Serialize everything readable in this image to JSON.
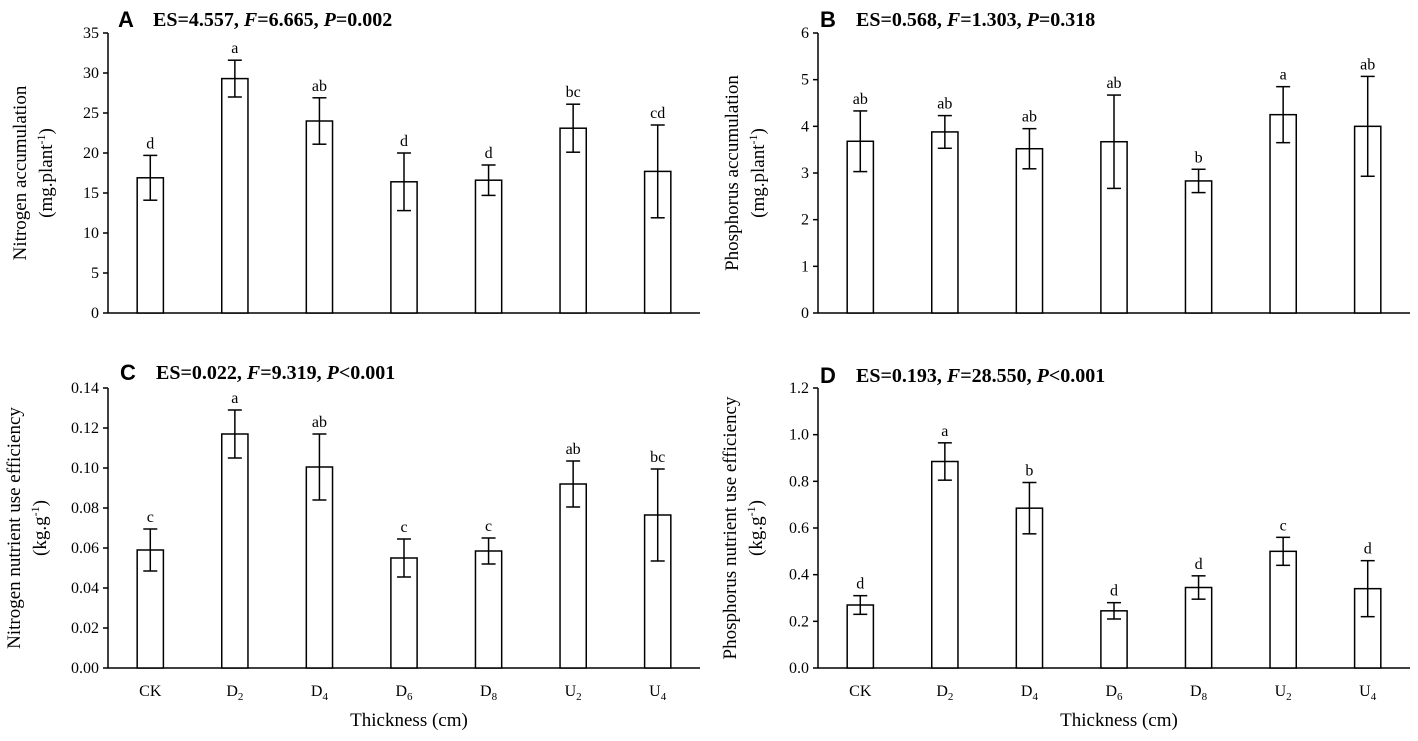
{
  "figure": {
    "shared_xlabel": "Thickness (cm)",
    "colors": {
      "bar_fill": "#ffffff",
      "stroke": "#000000",
      "background": "#ffffff"
    }
  },
  "chart_data": [
    {
      "panel": "A",
      "type": "bar",
      "stats": {
        "es": "ES=4.557, ",
        "f_label": "F",
        "f_value": "=6.665, ",
        "p_label": "P",
        "p_value": "=0.002"
      },
      "ylabel_line1": "Nitrogen accumulation",
      "ylabel_line2_main": "(mg.plant",
      "ylabel_line2_sup": "-1",
      "ylabel_line2_end": ")",
      "ylim": [
        0,
        35
      ],
      "ticks": [
        "0",
        "5",
        "10",
        "15",
        "20",
        "25",
        "30",
        "35"
      ],
      "categories": [
        {
          "base": "CK",
          "sub": ""
        },
        {
          "base": "D",
          "sub": "2"
        },
        {
          "base": "D",
          "sub": "4"
        },
        {
          "base": "D",
          "sub": "6"
        },
        {
          "base": "D",
          "sub": "8"
        },
        {
          "base": "U",
          "sub": "2"
        },
        {
          "base": "U",
          "sub": "4"
        }
      ],
      "show_categories": false,
      "values": [
        16.9,
        29.3,
        24.0,
        16.4,
        16.6,
        23.1,
        17.7
      ],
      "errors": [
        2.8,
        2.3,
        2.9,
        3.6,
        1.9,
        3.0,
        5.8
      ],
      "letters": [
        "d",
        "a",
        "ab",
        "d",
        "d",
        "bc",
        "cd"
      ],
      "xlabel": ""
    },
    {
      "panel": "B",
      "type": "bar",
      "stats": {
        "es": "ES=0.568, ",
        "f_label": "F",
        "f_value": "=1.303, ",
        "p_label": "P",
        "p_value": "=0.318"
      },
      "ylabel_line1": "Phosphorus accumulation",
      "ylabel_line2_main": "(mg.plant",
      "ylabel_line2_sup": "-1",
      "ylabel_line2_end": ")",
      "ylim": [
        0,
        6
      ],
      "ticks": [
        "0",
        "1",
        "2",
        "3",
        "4",
        "5",
        "6"
      ],
      "categories": [
        {
          "base": "CK",
          "sub": ""
        },
        {
          "base": "D",
          "sub": "2"
        },
        {
          "base": "D",
          "sub": "4"
        },
        {
          "base": "D",
          "sub": "6"
        },
        {
          "base": "D",
          "sub": "8"
        },
        {
          "base": "U",
          "sub": "2"
        },
        {
          "base": "U",
          "sub": "4"
        }
      ],
      "show_categories": false,
      "values": [
        3.68,
        3.88,
        3.52,
        3.67,
        2.83,
        4.25,
        4.0
      ],
      "errors": [
        0.65,
        0.35,
        0.43,
        1.0,
        0.25,
        0.6,
        1.07
      ],
      "letters": [
        "ab",
        "ab",
        "ab",
        "ab",
        "b",
        "a",
        "ab"
      ],
      "xlabel": ""
    },
    {
      "panel": "C",
      "type": "bar",
      "stats": {
        "es": "ES=0.022, ",
        "f_label": "F",
        "f_value": "=9.319, ",
        "p_label": "P",
        "p_value": "<0.001"
      },
      "ylabel_line1": "Nitrogen nutrient use efficiency",
      "ylabel_line2_main": "(kg.g",
      "ylabel_line2_sup": "-1",
      "ylabel_line2_end": ")",
      "ylim": [
        0,
        0.14
      ],
      "ticks": [
        "0.00",
        "0.02",
        "0.04",
        "0.06",
        "0.08",
        "0.10",
        "0.12",
        "0.14"
      ],
      "categories": [
        {
          "base": "CK",
          "sub": ""
        },
        {
          "base": "D",
          "sub": "2"
        },
        {
          "base": "D",
          "sub": "4"
        },
        {
          "base": "D",
          "sub": "6"
        },
        {
          "base": "D",
          "sub": "8"
        },
        {
          "base": "U",
          "sub": "2"
        },
        {
          "base": "U",
          "sub": "4"
        }
      ],
      "show_categories": true,
      "values": [
        0.059,
        0.117,
        0.1005,
        0.055,
        0.0585,
        0.092,
        0.0765
      ],
      "errors": [
        0.0105,
        0.012,
        0.0165,
        0.0095,
        0.0065,
        0.0115,
        0.023
      ],
      "letters": [
        "c",
        "a",
        "ab",
        "c",
        "c",
        "ab",
        "bc"
      ],
      "xlabel": "Thickness (cm)"
    },
    {
      "panel": "D",
      "type": "bar",
      "stats": {
        "es": "ES=0.193, ",
        "f_label": "F",
        "f_value": "=28.550, ",
        "p_label": "P",
        "p_value": "<0.001"
      },
      "ylabel_line1": "Phosphorus nutrient use efficiency",
      "ylabel_line2_main": "(kg.g",
      "ylabel_line2_sup": "-1",
      "ylabel_line2_end": ")",
      "ylim": [
        0,
        1.2
      ],
      "ticks": [
        "0.0",
        "0.2",
        "0.4",
        "0.6",
        "0.8",
        "1.0",
        "1.2"
      ],
      "categories": [
        {
          "base": "CK",
          "sub": ""
        },
        {
          "base": "D",
          "sub": "2"
        },
        {
          "base": "D",
          "sub": "4"
        },
        {
          "base": "D",
          "sub": "6"
        },
        {
          "base": "D",
          "sub": "8"
        },
        {
          "base": "U",
          "sub": "2"
        },
        {
          "base": "U",
          "sub": "4"
        }
      ],
      "show_categories": true,
      "values": [
        0.27,
        0.885,
        0.685,
        0.245,
        0.345,
        0.5,
        0.34
      ],
      "errors": [
        0.04,
        0.08,
        0.11,
        0.035,
        0.05,
        0.06,
        0.12
      ],
      "letters": [
        "d",
        "a",
        "b",
        "d",
        "d",
        "c",
        "d"
      ],
      "xlabel": "Thickness (cm)"
    }
  ]
}
